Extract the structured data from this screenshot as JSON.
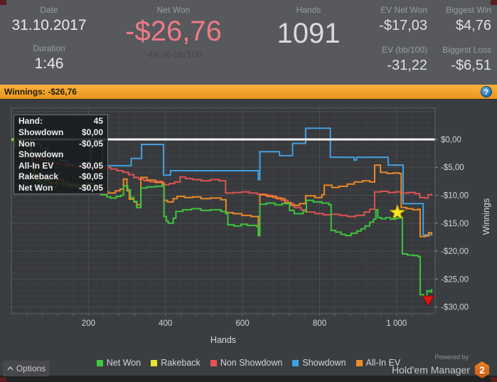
{
  "header": {
    "date": {
      "label": "Date",
      "value": "31.10.2017"
    },
    "duration": {
      "label": "Duration",
      "value": "1:46"
    },
    "net_won": {
      "label": "Net Won",
      "value": "-$26,76",
      "sub": "-49,06 bb/100"
    },
    "hands": {
      "label": "Hands",
      "value": "1091"
    },
    "ev_net_won": {
      "label": "EV Net Won",
      "value": "-$17,03"
    },
    "ev_bb100": {
      "label": "EV (bb/100)",
      "value": "-31,22"
    },
    "biggest_win": {
      "label": "Biggest Win",
      "value": "$4,76"
    },
    "biggest_loss": {
      "label": "Biggest Loss",
      "value": "-$6,51"
    }
  },
  "winnings_bar": {
    "text": "Winnings: -$26,76",
    "info_icon": "?"
  },
  "tooltip": {
    "header": {
      "label": "Hand:",
      "value": "45"
    },
    "rows": [
      {
        "label": "Showdown",
        "value": "$0,00"
      },
      {
        "label": "Non Showdown",
        "value": "-$0,05"
      },
      {
        "label": "All-In EV",
        "value": "-$0,05"
      },
      {
        "label": "Rakeback",
        "value": "-$0,05"
      },
      {
        "label": "Net Won",
        "value": "-$0,05"
      }
    ]
  },
  "chart_data": {
    "type": "line",
    "xlabel": "Hands",
    "ylabel": "Winnings",
    "xlim": [
      0,
      1100
    ],
    "ylim_top": 5.6,
    "ylim_bottom": -31.2,
    "grid": {
      "x_minor": 40,
      "x_major": 200,
      "y_minor": 1,
      "y_major": 5
    },
    "x_ticks": [
      {
        "v": 200,
        "label": "200"
      },
      {
        "v": 400,
        "label": "400"
      },
      {
        "v": 600,
        "label": "600"
      },
      {
        "v": 800,
        "label": "800"
      },
      {
        "v": 1000,
        "label": "1 000"
      }
    ],
    "y_ticks": [
      {
        "v": 0,
        "label": "$0,00"
      },
      {
        "v": -5,
        "label": "-$5,00"
      },
      {
        "v": -10,
        "label": "-$10,00"
      },
      {
        "v": -15,
        "label": "-$15,00"
      },
      {
        "v": -20,
        "label": "-$20,00"
      },
      {
        "v": -25,
        "label": "-$25,00"
      },
      {
        "v": -30,
        "label": "-$30,00"
      }
    ],
    "zero_line_color": "#f4f4f4",
    "series": [
      {
        "name": "Rakeback",
        "color": "#e2e232",
        "points": [
          [
            1,
            0
          ],
          [
            40,
            -0.05
          ],
          [
            1091,
            -0.05
          ]
        ]
      },
      {
        "name": "Showdown",
        "color": "#42a0e0",
        "points": [
          [
            1,
            0
          ],
          [
            45,
            0
          ],
          [
            58,
            -0.8
          ],
          [
            76,
            -1.6
          ],
          [
            95,
            -2.4
          ],
          [
            112,
            -3.1
          ],
          [
            128,
            -3.8
          ],
          [
            145,
            -4.4
          ],
          [
            175,
            -4.4
          ],
          [
            206,
            -0.8
          ],
          [
            233,
            -0.8
          ],
          [
            236,
            -4.7
          ],
          [
            306,
            -4.7
          ],
          [
            311,
            -3.4
          ],
          [
            335,
            -3.4
          ],
          [
            338,
            -0.9
          ],
          [
            392,
            -0.9
          ],
          [
            395,
            -6.4
          ],
          [
            409,
            -6.4
          ],
          [
            413,
            -5.6
          ],
          [
            638,
            -5.6
          ],
          [
            641,
            -7.2
          ],
          [
            645,
            -2.2
          ],
          [
            692,
            -2.2
          ],
          [
            696,
            -2.9
          ],
          [
            726,
            -2.9
          ],
          [
            730,
            -0.7
          ],
          [
            760,
            -0.7
          ],
          [
            764,
            2.0
          ],
          [
            824,
            2.0
          ],
          [
            828,
            -3.2
          ],
          [
            886,
            -3.2
          ],
          [
            890,
            -3.7
          ],
          [
            896,
            -3.2
          ],
          [
            974,
            -3.2
          ],
          [
            978,
            -4.6
          ],
          [
            1014,
            -4.6
          ],
          [
            1017,
            -11.5
          ],
          [
            1066,
            -11.5
          ],
          [
            1069,
            -17.1
          ],
          [
            1091,
            -17.15
          ]
        ]
      },
      {
        "name": "Non Showdown",
        "color": "#dd5252",
        "points": [
          [
            1,
            0
          ],
          [
            45,
            -0.05
          ],
          [
            52,
            -2.8
          ],
          [
            60,
            -3.4
          ],
          [
            76,
            -3.7
          ],
          [
            96,
            -4.1
          ],
          [
            118,
            -4.4
          ],
          [
            140,
            -4.7
          ],
          [
            162,
            -4.9
          ],
          [
            182,
            -4.6
          ],
          [
            200,
            -4.9
          ],
          [
            216,
            -5.1
          ],
          [
            232,
            -5.4
          ],
          [
            244,
            -5.0
          ],
          [
            258,
            -5.3
          ],
          [
            274,
            -5.6
          ],
          [
            290,
            -5.9
          ],
          [
            304,
            -6.3
          ],
          [
            318,
            -6.8
          ],
          [
            330,
            -7.1
          ],
          [
            344,
            -7.4
          ],
          [
            360,
            -7.6
          ],
          [
            378,
            -7.5
          ],
          [
            392,
            -7.7
          ],
          [
            396,
            -8.1
          ],
          [
            410,
            -7.9
          ],
          [
            424,
            -7.6
          ],
          [
            438,
            -6.7
          ],
          [
            452,
            -7.0
          ],
          [
            470,
            -7.2
          ],
          [
            492,
            -7.4
          ],
          [
            516,
            -7.2
          ],
          [
            540,
            -7.4
          ],
          [
            556,
            -9.6
          ],
          [
            576,
            -9.5
          ],
          [
            598,
            -9.4
          ],
          [
            618,
            -9.6
          ],
          [
            638,
            -9.8
          ],
          [
            658,
            -10.0
          ],
          [
            678,
            -10.4
          ],
          [
            700,
            -10.9
          ],
          [
            718,
            -11.5
          ],
          [
            734,
            -12.2
          ],
          [
            752,
            -12.6
          ],
          [
            766,
            -13.0
          ],
          [
            788,
            -13.3
          ],
          [
            810,
            -13.5
          ],
          [
            830,
            -13.4
          ],
          [
            852,
            -13.6
          ],
          [
            872,
            -13.8
          ],
          [
            894,
            -13.6
          ],
          [
            916,
            -13.0
          ],
          [
            930,
            -12.5
          ],
          [
            943,
            -9.4
          ],
          [
            960,
            -9.3
          ],
          [
            978,
            -9.5
          ],
          [
            996,
            -9.4
          ],
          [
            1012,
            -9.6
          ],
          [
            1030,
            -9.5
          ],
          [
            1048,
            -9.7
          ],
          [
            1060,
            -10.4
          ],
          [
            1074,
            -10.5
          ],
          [
            1082,
            -9.9
          ],
          [
            1091,
            -9.73
          ]
        ]
      },
      {
        "name": "All-In EV",
        "color": "#ec8826",
        "points": [
          [
            1,
            0
          ],
          [
            45,
            -0.05
          ],
          [
            50,
            -2.4
          ],
          [
            55,
            -4.2
          ],
          [
            60,
            -6.4
          ],
          [
            70,
            -7.0
          ],
          [
            85,
            -7.4
          ],
          [
            100,
            -7.8
          ],
          [
            118,
            -7.3
          ],
          [
            135,
            -7.7
          ],
          [
            150,
            -8.1
          ],
          [
            172,
            -8.6
          ],
          [
            196,
            -7.9
          ],
          [
            214,
            -8.4
          ],
          [
            232,
            -9.4
          ],
          [
            252,
            -9.6
          ],
          [
            270,
            -9.2
          ],
          [
            282,
            -8.9
          ],
          [
            291,
            -7.1
          ],
          [
            300,
            -9.2
          ],
          [
            306,
            -10.7
          ],
          [
            318,
            -11.2
          ],
          [
            326,
            -11.7
          ],
          [
            336,
            -6.8
          ],
          [
            352,
            -7.3
          ],
          [
            374,
            -7.7
          ],
          [
            392,
            -8.0
          ],
          [
            396,
            -10.9
          ],
          [
            405,
            -11.2
          ],
          [
            420,
            -10.6
          ],
          [
            430,
            -10.2
          ],
          [
            450,
            -10.4
          ],
          [
            470,
            -10.3
          ],
          [
            492,
            -10.6
          ],
          [
            516,
            -10.5
          ],
          [
            544,
            -10.8
          ],
          [
            557,
            -13.1
          ],
          [
            576,
            -13.3
          ],
          [
            598,
            -13.6
          ],
          [
            622,
            -13.8
          ],
          [
            641,
            -17.2
          ],
          [
            645,
            -9.9
          ],
          [
            664,
            -10.2
          ],
          [
            688,
            -10.6
          ],
          [
            710,
            -11.3
          ],
          [
            726,
            -11.8
          ],
          [
            748,
            -11.5
          ],
          [
            764,
            -10.1
          ],
          [
            788,
            -10.4
          ],
          [
            806,
            -9.9
          ],
          [
            812,
            -8.2
          ],
          [
            832,
            -8.6
          ],
          [
            850,
            -8.4
          ],
          [
            872,
            -8.0
          ],
          [
            890,
            -7.6
          ],
          [
            912,
            -7.4
          ],
          [
            930,
            -7.6
          ],
          [
            943,
            -4.6
          ],
          [
            958,
            -5.9
          ],
          [
            975,
            -6.1
          ],
          [
            992,
            -6.0
          ],
          [
            1006,
            -6.1
          ],
          [
            1012,
            -12.2
          ],
          [
            1026,
            -12.4
          ],
          [
            1042,
            -12.6
          ],
          [
            1056,
            -12.5
          ],
          [
            1061,
            -17.4
          ],
          [
            1074,
            -17.3
          ],
          [
            1083,
            -16.7
          ],
          [
            1091,
            -17.03
          ]
        ]
      },
      {
        "name": "Net Won",
        "color": "#3ec43e",
        "points": [
          [
            1,
            0
          ],
          [
            45,
            -0.05
          ],
          [
            50,
            -2.6
          ],
          [
            54,
            -4.6
          ],
          [
            58,
            -6.9
          ],
          [
            66,
            -7.5
          ],
          [
            78,
            -7.9
          ],
          [
            92,
            -8.3
          ],
          [
            104,
            -8.5
          ],
          [
            118,
            -7.9
          ],
          [
            132,
            -8.1
          ],
          [
            148,
            -8.4
          ],
          [
            170,
            -8.2
          ],
          [
            196,
            -8.0
          ],
          [
            214,
            -8.6
          ],
          [
            232,
            -9.9
          ],
          [
            248,
            -10.3
          ],
          [
            258,
            -10.5
          ],
          [
            272,
            -10.2
          ],
          [
            284,
            -10.0
          ],
          [
            291,
            -8.3
          ],
          [
            302,
            -9.0
          ],
          [
            309,
            -10.4
          ],
          [
            318,
            -11.1
          ],
          [
            325,
            -12.2
          ],
          [
            336,
            -8.7
          ],
          [
            352,
            -8.5
          ],
          [
            374,
            -8.4
          ],
          [
            392,
            -8.2
          ],
          [
            396,
            -13.8
          ],
          [
            402,
            -14.6
          ],
          [
            407,
            -15.0
          ],
          [
            420,
            -14.1
          ],
          [
            427,
            -12.9
          ],
          [
            445,
            -12.6
          ],
          [
            468,
            -12.4
          ],
          [
            492,
            -12.7
          ],
          [
            516,
            -12.6
          ],
          [
            544,
            -12.9
          ],
          [
            556,
            -13.3
          ],
          [
            562,
            -15.3
          ],
          [
            578,
            -15.5
          ],
          [
            596,
            -15.2
          ],
          [
            612,
            -15.4
          ],
          [
            636,
            -15.6
          ],
          [
            641,
            -17.2
          ],
          [
            645,
            -11.6
          ],
          [
            662,
            -11.4
          ],
          [
            684,
            -11.7
          ],
          [
            703,
            -11.5
          ],
          [
            722,
            -12.7
          ],
          [
            734,
            -13.3
          ],
          [
            757,
            -12.9
          ],
          [
            766,
            -10.9
          ],
          [
            784,
            -11.2
          ],
          [
            806,
            -11.4
          ],
          [
            824,
            -11.7
          ],
          [
            830,
            -16.3
          ],
          [
            842,
            -16.6
          ],
          [
            856,
            -17.0
          ],
          [
            868,
            -17.2
          ],
          [
            882,
            -16.8
          ],
          [
            897,
            -16.4
          ],
          [
            908,
            -16.0
          ],
          [
            918,
            -15.5
          ],
          [
            930,
            -14.8
          ],
          [
            940,
            -14.3
          ],
          [
            946,
            -12.6
          ],
          [
            951,
            -14.0
          ],
          [
            960,
            -14.2
          ],
          [
            972,
            -14.0
          ],
          [
            984,
            -14.3
          ],
          [
            998,
            -14.1
          ],
          [
            1007,
            -13.9
          ],
          [
            1015,
            -20.5
          ],
          [
            1028,
            -20.7
          ],
          [
            1044,
            -20.8
          ],
          [
            1056,
            -21.0
          ],
          [
            1061,
            -27.8
          ],
          [
            1070,
            -28.1
          ],
          [
            1079,
            -27.1
          ],
          [
            1086,
            -27.3
          ],
          [
            1091,
            -26.76
          ]
        ]
      }
    ],
    "markers": [
      {
        "type": "dot",
        "hand": 5,
        "value": -0.05,
        "color": "#e8d828"
      },
      {
        "type": "arrow-up",
        "hand": 10,
        "value": -0.6,
        "color": "#2eb52e"
      },
      {
        "type": "star",
        "hand": 1002,
        "value": -13.1,
        "color": "#f7e71c"
      },
      {
        "type": "triangle-down",
        "hand": 1082,
        "value": -28.9,
        "color": "#dd1515"
      }
    ],
    "legend": [
      {
        "label": "Net Won",
        "color": "#3ecc3e"
      },
      {
        "label": "Rakeback",
        "color": "#e6e632"
      },
      {
        "label": "Non Showdown",
        "color": "#e85252"
      },
      {
        "label": "Showdown",
        "color": "#42a0e8"
      },
      {
        "label": "All-In EV",
        "color": "#f08c28"
      }
    ]
  },
  "footer": {
    "options": "Options",
    "powered_by": "Powered by",
    "brand": "Hold'em Manager",
    "badge": "2"
  }
}
